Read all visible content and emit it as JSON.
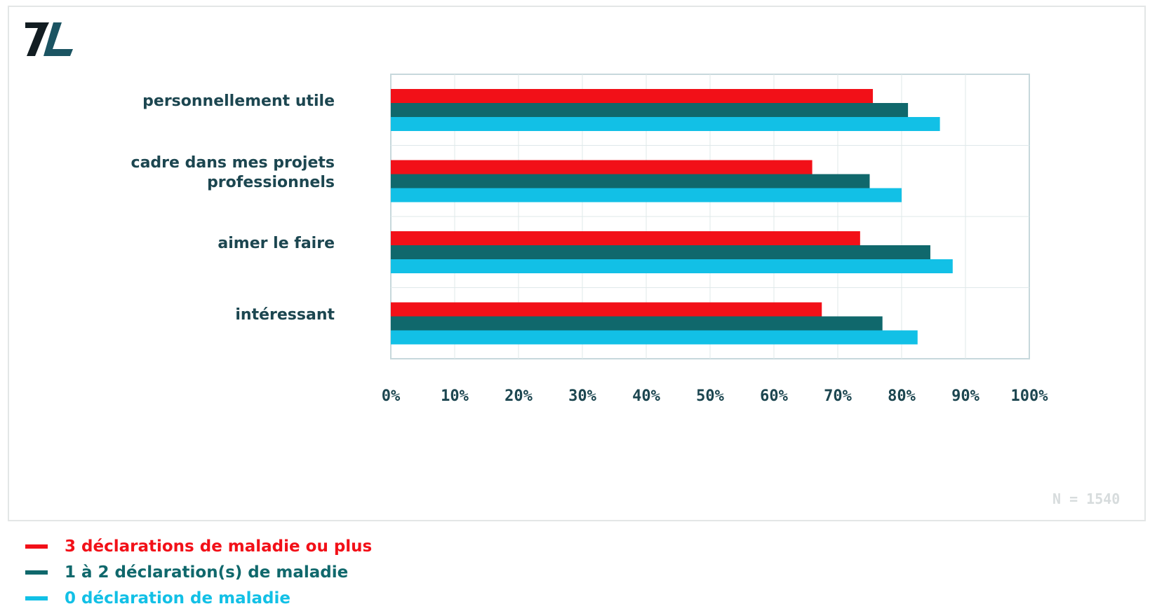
{
  "logo": {
    "text": "7L"
  },
  "note": "N = 1540",
  "colors": {
    "red": "#f21018",
    "teal": "#10686c",
    "cyan": "#12c0e6",
    "label": "#1c4650",
    "grid": "#dfe8ea",
    "axis": "#c7d8dc"
  },
  "chart_data": {
    "type": "bar",
    "orientation": "horizontal",
    "categories": [
      "personnellement utile",
      "cadre dans mes projets professionnels",
      "aimer le faire",
      "intéressant"
    ],
    "category_lines": [
      [
        "personnellement utile"
      ],
      [
        "cadre dans mes projets",
        "professionnels"
      ],
      [
        "aimer le faire"
      ],
      [
        "intéressant"
      ]
    ],
    "series": [
      {
        "name": "3 déclarations de maladie ou plus",
        "color": "#f21018",
        "values": [
          75.5,
          66,
          73.5,
          67.5
        ]
      },
      {
        "name": "1 à 2 déclaration(s) de maladie",
        "color": "#10686c",
        "values": [
          81,
          75,
          84.5,
          77
        ]
      },
      {
        "name": "0 déclaration de maladie",
        "color": "#12c0e6",
        "values": [
          86,
          80,
          88,
          82.5
        ]
      }
    ],
    "xlim": [
      0,
      100
    ],
    "xticks": [
      "0%",
      "10%",
      "20%",
      "30%",
      "40%",
      "50%",
      "60%",
      "70%",
      "80%",
      "90%",
      "100%"
    ],
    "grid": true,
    "legend": "bottom-left"
  }
}
